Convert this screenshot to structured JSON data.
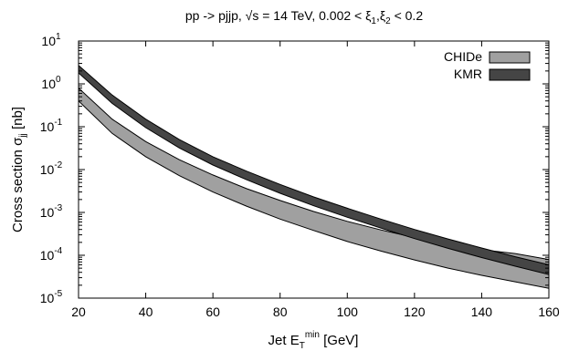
{
  "chart_data": {
    "type": "area",
    "title": "pp -> pjjp, √s = 14 TeV,  0.002 < ξ",
    "title_parts": {
      "main": "pp -> pjjp, √s = 14 TeV,  0.002 < ξ",
      "sub1": "1",
      "mid": ",ξ",
      "sub2": "2",
      "tail": " < 0.2"
    },
    "xlabel": {
      "main": "Jet E",
      "sub": "T",
      "sup": "min",
      "tail": " [GeV]"
    },
    "ylabel": {
      "main": "Cross section σ",
      "sub": "jj",
      "tail": " [nb]"
    },
    "xlim": [
      20,
      160
    ],
    "ylim": [
      1e-05,
      10
    ],
    "yscale": "log",
    "grid": false,
    "legend_position": "top-right",
    "x_ticks": [
      20,
      40,
      60,
      80,
      100,
      120,
      140,
      160
    ],
    "y_ticks": [
      {
        "base": "10",
        "exp": "-5"
      },
      {
        "base": "10",
        "exp": "-4"
      },
      {
        "base": "10",
        "exp": "-3"
      },
      {
        "base": "10",
        "exp": "-2"
      },
      {
        "base": "10",
        "exp": "-1"
      },
      {
        "base": "10",
        "exp": "0"
      },
      {
        "base": "10",
        "exp": "1"
      }
    ],
    "series": [
      {
        "name": "CHIDe",
        "fill": "#a0a0a0",
        "stroke": "#000000",
        "x": [
          20,
          30,
          40,
          50,
          60,
          70,
          80,
          90,
          100,
          110,
          120,
          130,
          140,
          150,
          160
        ],
        "upper": [
          0.8,
          0.15,
          0.045,
          0.017,
          0.0075,
          0.0036,
          0.0019,
          0.00105,
          0.00062,
          0.00039,
          0.00026,
          0.00018,
          0.000135,
          0.00011,
          8e-05
        ],
        "lower": [
          0.4,
          0.07,
          0.02,
          0.0072,
          0.003,
          0.0014,
          0.0007,
          0.00038,
          0.00021,
          0.000125,
          7.8e-05,
          5e-05,
          3.4e-05,
          2.4e-05,
          1.7e-05
        ]
      },
      {
        "name": "KMR",
        "fill": "#454545",
        "stroke": "#000000",
        "x": [
          20,
          30,
          40,
          50,
          60,
          70,
          80,
          90,
          100,
          110,
          120,
          130,
          140,
          150,
          160
        ],
        "upper": [
          2.7,
          0.55,
          0.15,
          0.05,
          0.02,
          0.0092,
          0.0045,
          0.0023,
          0.00125,
          0.0007,
          0.0004,
          0.00024,
          0.000148,
          9.25e-05,
          6e-05
        ],
        "lower": [
          1.8,
          0.35,
          0.095,
          0.032,
          0.0128,
          0.0058,
          0.0028,
          0.00143,
          0.00077,
          0.00043,
          0.000245,
          0.000145,
          8.85e-05,
          5.55e-05,
          3.55e-05
        ]
      }
    ]
  }
}
